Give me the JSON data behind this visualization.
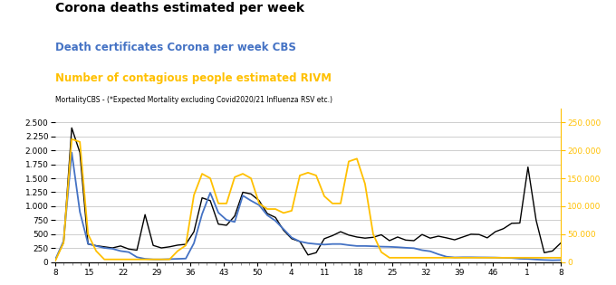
{
  "title": "Corona deaths estimated per week",
  "legend1": "Death certificates Corona per week CBS",
  "legend2": "Number of contagious people estimated RIVM",
  "subtitle": "MortalityCBS - (*Expected Mortality excluding Covid2020/21 Influenza RSV etc.)",
  "color_black": "#000000",
  "color_blue": "#4472C4",
  "color_yellow": "#FFC000",
  "xlabels": [
    "8",
    "15",
    "22",
    "29",
    "36",
    "43",
    "50",
    "4",
    "11",
    "18",
    "25",
    "32",
    "39",
    "46",
    "1",
    "8"
  ],
  "ylim_left": [
    0,
    2750
  ],
  "ylim_right": [
    0,
    275000
  ],
  "yticks_left": [
    0,
    250,
    500,
    750,
    1000,
    1250,
    1500,
    1750,
    2000,
    2250,
    2500
  ],
  "yticks_right": [
    0,
    50000,
    100000,
    150000,
    200000,
    250000
  ],
  "black_data": [
    50,
    350,
    2400,
    1960,
    325,
    295,
    275,
    255,
    290,
    235,
    215,
    850,
    300,
    255,
    275,
    305,
    320,
    545,
    1150,
    1100,
    680,
    660,
    825,
    1250,
    1220,
    1100,
    870,
    800,
    570,
    420,
    370,
    130,
    170,
    420,
    475,
    545,
    485,
    450,
    430,
    445,
    490,
    385,
    450,
    395,
    385,
    495,
    430,
    465,
    435,
    400,
    450,
    500,
    495,
    435,
    545,
    600,
    695,
    700,
    1700,
    750,
    170,
    200,
    340
  ],
  "blue_data": [
    50,
    380,
    1960,
    900,
    330,
    290,
    255,
    240,
    200,
    180,
    90,
    60,
    50,
    50,
    55,
    60,
    65,
    340,
    860,
    1240,
    885,
    755,
    720,
    1190,
    1100,
    1020,
    840,
    740,
    590,
    440,
    370,
    340,
    325,
    315,
    325,
    325,
    305,
    290,
    290,
    285,
    278,
    275,
    268,
    258,
    250,
    215,
    195,
    142,
    98,
    85,
    88,
    88,
    86,
    85,
    83,
    78,
    75,
    62,
    58,
    48,
    40,
    35,
    38
  ],
  "yellow_data": [
    3000,
    35000,
    220000,
    215000,
    50000,
    20000,
    5000,
    5000,
    5000,
    5000,
    5000,
    5000,
    5000,
    5000,
    5000,
    20000,
    30000,
    120000,
    158000,
    150000,
    105000,
    105000,
    152000,
    158000,
    150000,
    105000,
    95000,
    95000,
    88000,
    92000,
    155000,
    160000,
    155000,
    118000,
    105000,
    105000,
    180000,
    185000,
    140000,
    50000,
    18000,
    8000,
    8000,
    8000,
    8000,
    8000,
    8000,
    8000,
    8000,
    8000,
    8000,
    8000,
    8000,
    8000,
    8000,
    8000,
    8000,
    8000,
    8000,
    8000,
    8000,
    8000,
    8000
  ]
}
